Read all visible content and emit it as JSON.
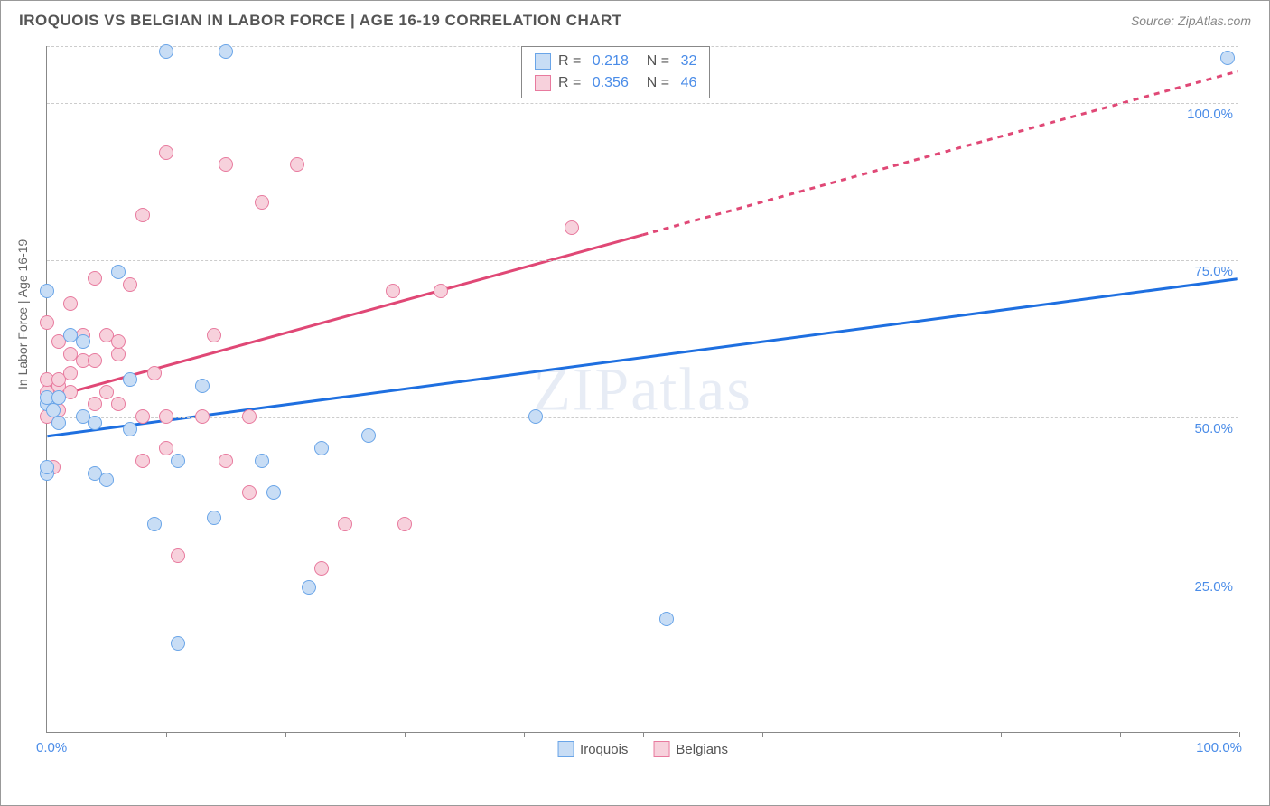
{
  "title": "IROQUOIS VS BELGIAN IN LABOR FORCE | AGE 16-19 CORRELATION CHART",
  "source": "Source: ZipAtlas.com",
  "watermark": "ZIPatlas",
  "yaxis_label": "In Labor Force | Age 16-19",
  "chart": {
    "type": "scatter",
    "xlim": [
      0,
      100
    ],
    "ylim": [
      0,
      109
    ],
    "xlabel_start": "0.0%",
    "xlabel_end": "100.0%",
    "y_ticks": [
      {
        "val": 25,
        "label": "25.0%"
      },
      {
        "val": 50,
        "label": "50.0%"
      },
      {
        "val": 75,
        "label": "75.0%"
      },
      {
        "val": 100,
        "label": "100.0%"
      },
      {
        "val": 109,
        "label": ""
      }
    ],
    "x_tick_positions": [
      10,
      20,
      30,
      40,
      50,
      60,
      70,
      80,
      90,
      100
    ],
    "point_radius": 8,
    "point_stroke_width": 1.5,
    "background_color": "#ffffff",
    "grid_color": "#cccccc",
    "series": [
      {
        "name": "Iroquois",
        "color_fill": "#c8ddf5",
        "color_stroke": "#6aa5e8",
        "line_color": "#1e6fe0",
        "r_value": "0.218",
        "n_value": "32",
        "points": [
          {
            "x": 0,
            "y": 70
          },
          {
            "x": 0,
            "y": 41
          },
          {
            "x": 0,
            "y": 42
          },
          {
            "x": 0,
            "y": 52
          },
          {
            "x": 0,
            "y": 53
          },
          {
            "x": 0.5,
            "y": 51
          },
          {
            "x": 1,
            "y": 49
          },
          {
            "x": 1,
            "y": 53
          },
          {
            "x": 2,
            "y": 63
          },
          {
            "x": 3,
            "y": 50
          },
          {
            "x": 3,
            "y": 62
          },
          {
            "x": 4,
            "y": 41
          },
          {
            "x": 4,
            "y": 49
          },
          {
            "x": 5,
            "y": 40
          },
          {
            "x": 6,
            "y": 73
          },
          {
            "x": 7,
            "y": 48
          },
          {
            "x": 7,
            "y": 56
          },
          {
            "x": 9,
            "y": 33
          },
          {
            "x": 10,
            "y": 108
          },
          {
            "x": 11,
            "y": 14
          },
          {
            "x": 11,
            "y": 43
          },
          {
            "x": 13,
            "y": 55
          },
          {
            "x": 14,
            "y": 34
          },
          {
            "x": 15,
            "y": 108
          },
          {
            "x": 18,
            "y": 43
          },
          {
            "x": 19,
            "y": 38
          },
          {
            "x": 22,
            "y": 23
          },
          {
            "x": 23,
            "y": 45
          },
          {
            "x": 27,
            "y": 47
          },
          {
            "x": 41,
            "y": 50
          },
          {
            "x": 52,
            "y": 18
          },
          {
            "x": 99,
            "y": 107
          }
        ],
        "regression": {
          "x1": 0,
          "y1": 47,
          "x2": 100,
          "y2": 72
        }
      },
      {
        "name": "Belgians",
        "color_fill": "#f7d1dc",
        "color_stroke": "#e87a9e",
        "line_color": "#e04876",
        "r_value": "0.356",
        "n_value": "46",
        "points": [
          {
            "x": 0,
            "y": 50
          },
          {
            "x": 0,
            "y": 54
          },
          {
            "x": 0,
            "y": 56
          },
          {
            "x": 0,
            "y": 65
          },
          {
            "x": 0.5,
            "y": 42
          },
          {
            "x": 1,
            "y": 51
          },
          {
            "x": 1,
            "y": 55
          },
          {
            "x": 1,
            "y": 56
          },
          {
            "x": 1,
            "y": 62
          },
          {
            "x": 2,
            "y": 54
          },
          {
            "x": 2,
            "y": 57
          },
          {
            "x": 2,
            "y": 60
          },
          {
            "x": 2,
            "y": 68
          },
          {
            "x": 3,
            "y": 59
          },
          {
            "x": 3,
            "y": 63
          },
          {
            "x": 4,
            "y": 52
          },
          {
            "x": 4,
            "y": 72
          },
          {
            "x": 4,
            "y": 59
          },
          {
            "x": 5,
            "y": 54
          },
          {
            "x": 5,
            "y": 63
          },
          {
            "x": 6,
            "y": 60
          },
          {
            "x": 6,
            "y": 52
          },
          {
            "x": 6,
            "y": 62
          },
          {
            "x": 7,
            "y": 71
          },
          {
            "x": 8,
            "y": 82
          },
          {
            "x": 8,
            "y": 43
          },
          {
            "x": 8,
            "y": 50
          },
          {
            "x": 9,
            "y": 57
          },
          {
            "x": 10,
            "y": 45
          },
          {
            "x": 10,
            "y": 50
          },
          {
            "x": 10,
            "y": 92
          },
          {
            "x": 11,
            "y": 28
          },
          {
            "x": 13,
            "y": 50
          },
          {
            "x": 14,
            "y": 63
          },
          {
            "x": 15,
            "y": 90
          },
          {
            "x": 15,
            "y": 43
          },
          {
            "x": 17,
            "y": 50
          },
          {
            "x": 17,
            "y": 38
          },
          {
            "x": 18,
            "y": 84
          },
          {
            "x": 21,
            "y": 90
          },
          {
            "x": 23,
            "y": 26
          },
          {
            "x": 25,
            "y": 33
          },
          {
            "x": 29,
            "y": 70
          },
          {
            "x": 30,
            "y": 33
          },
          {
            "x": 33,
            "y": 70
          },
          {
            "x": 44,
            "y": 80
          }
        ],
        "regression": {
          "x1": 0,
          "y1": 53,
          "x2": 50,
          "y2": 79
        },
        "regression_dash": {
          "x1": 50,
          "y1": 79,
          "x2": 100,
          "y2": 105
        }
      }
    ]
  },
  "legend_bottom": [
    {
      "label": "Iroquois",
      "fill": "#c8ddf5",
      "stroke": "#6aa5e8"
    },
    {
      "label": "Belgians",
      "fill": "#f7d1dc",
      "stroke": "#e87a9e"
    }
  ]
}
